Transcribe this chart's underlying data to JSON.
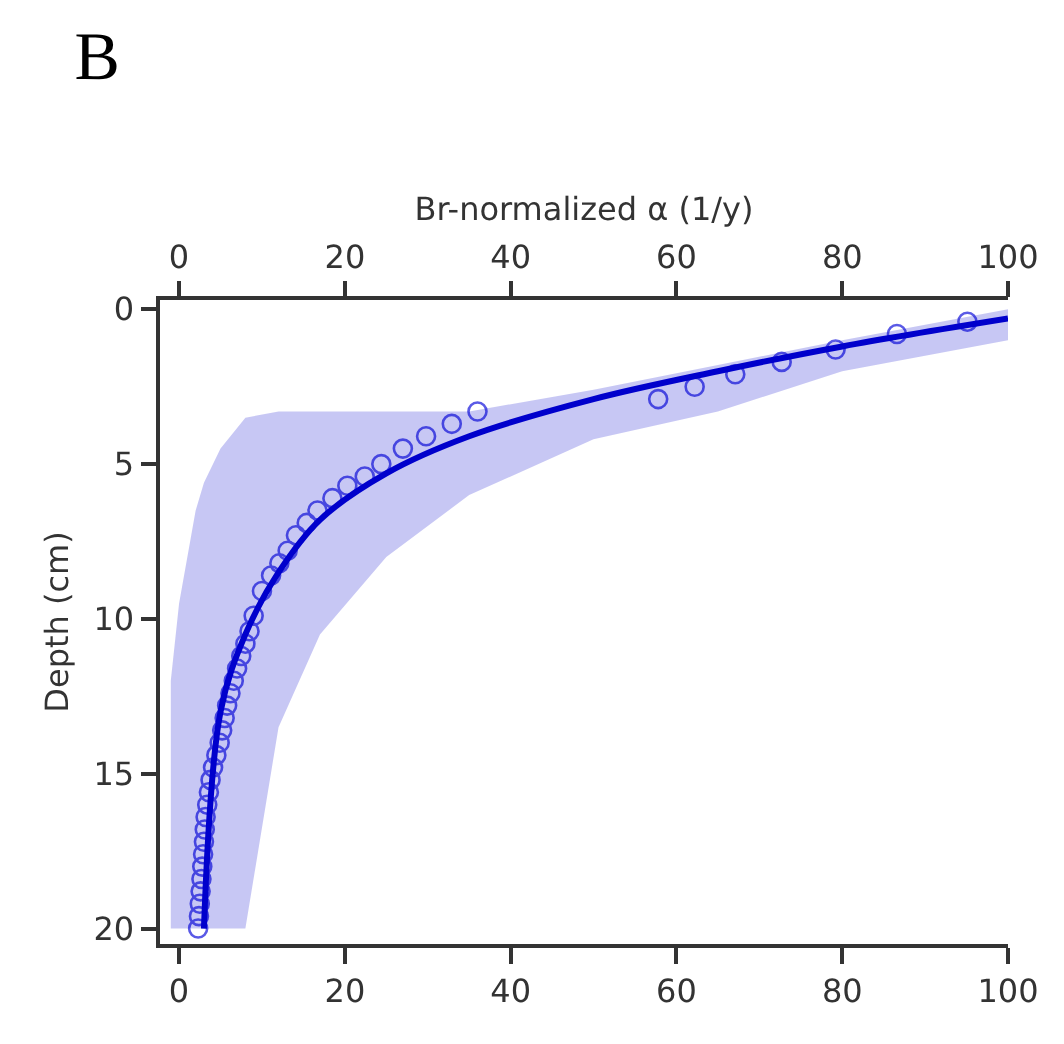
{
  "chart_data": {
    "type": "scatter",
    "title": "B",
    "x2label": "Br-normalized α (1/y)",
    "ylabel": "Depth (cm)",
    "xlim": [
      -2.3,
      100
    ],
    "xticks": [
      0,
      20,
      40,
      60,
      80,
      100
    ],
    "x2lim": [
      -2.3,
      100
    ],
    "x2ticks": [
      0,
      20,
      40,
      60,
      80,
      100
    ],
    "ylim": [
      20.5,
      -0.3
    ],
    "yticks": [
      0,
      5,
      10,
      15,
      20
    ],
    "series": [
      {
        "marker": "circle",
        "color": "#5a5ae6",
        "x": [
          95.1,
          86.6,
          79.2,
          72.7,
          67.1,
          62.2,
          57.8,
          36.0,
          32.9,
          29.8,
          27.0,
          24.4,
          22.4,
          20.3,
          18.5,
          16.7,
          15.4,
          14.1,
          13.1,
          12.1,
          11.1,
          10.0,
          9.0,
          8.5,
          8.0,
          7.5,
          7.0,
          6.6,
          6.2,
          5.8,
          5.5,
          5.2,
          4.9,
          4.5,
          4.1,
          3.8,
          3.6,
          3.4,
          3.2,
          3.1,
          3.0,
          2.9,
          2.8,
          2.7,
          2.6,
          2.5,
          2.4,
          2.3
        ],
        "values": [
          0.4,
          0.8,
          1.3,
          1.7,
          2.1,
          2.5,
          2.9,
          3.3,
          3.7,
          4.1,
          4.5,
          5.0,
          5.4,
          5.7,
          6.1,
          6.5,
          6.9,
          7.3,
          7.8,
          8.2,
          8.6,
          9.1,
          9.9,
          10.4,
          10.8,
          11.2,
          11.6,
          12.0,
          12.4,
          12.8,
          13.2,
          13.6,
          14.0,
          14.4,
          14.8,
          15.2,
          15.6,
          16.0,
          16.4,
          16.8,
          17.2,
          17.6,
          18.0,
          18.4,
          18.8,
          19.2,
          19.6,
          20.0
        ]
      },
      {
        "type": "line",
        "marker": "none",
        "line_style": "solid",
        "color": "#0000cc",
        "x": [
          -1,
          0,
          2,
          3,
          5,
          8,
          12,
          17,
          25,
          35,
          50,
          65,
          80,
          100
        ],
        "values": [
          null,
          null,
          null,
          20,
          13,
          10.5,
          8.5,
          6.8,
          5.3,
          4.1,
          2.9,
          2.0,
          1.2,
          0.3
        ],
        "lower": [
          12,
          9.5,
          6.5,
          5.6,
          4.5,
          3.5,
          3.3,
          3.3,
          3.3,
          3.3,
          2.6,
          1.8,
          1.0,
          0.0
        ],
        "upper": [
          20,
          20,
          20,
          20,
          20,
          20,
          13.5,
          10.5,
          8,
          6,
          4.2,
          3.3,
          2.0,
          1.0
        ]
      }
    ]
  }
}
